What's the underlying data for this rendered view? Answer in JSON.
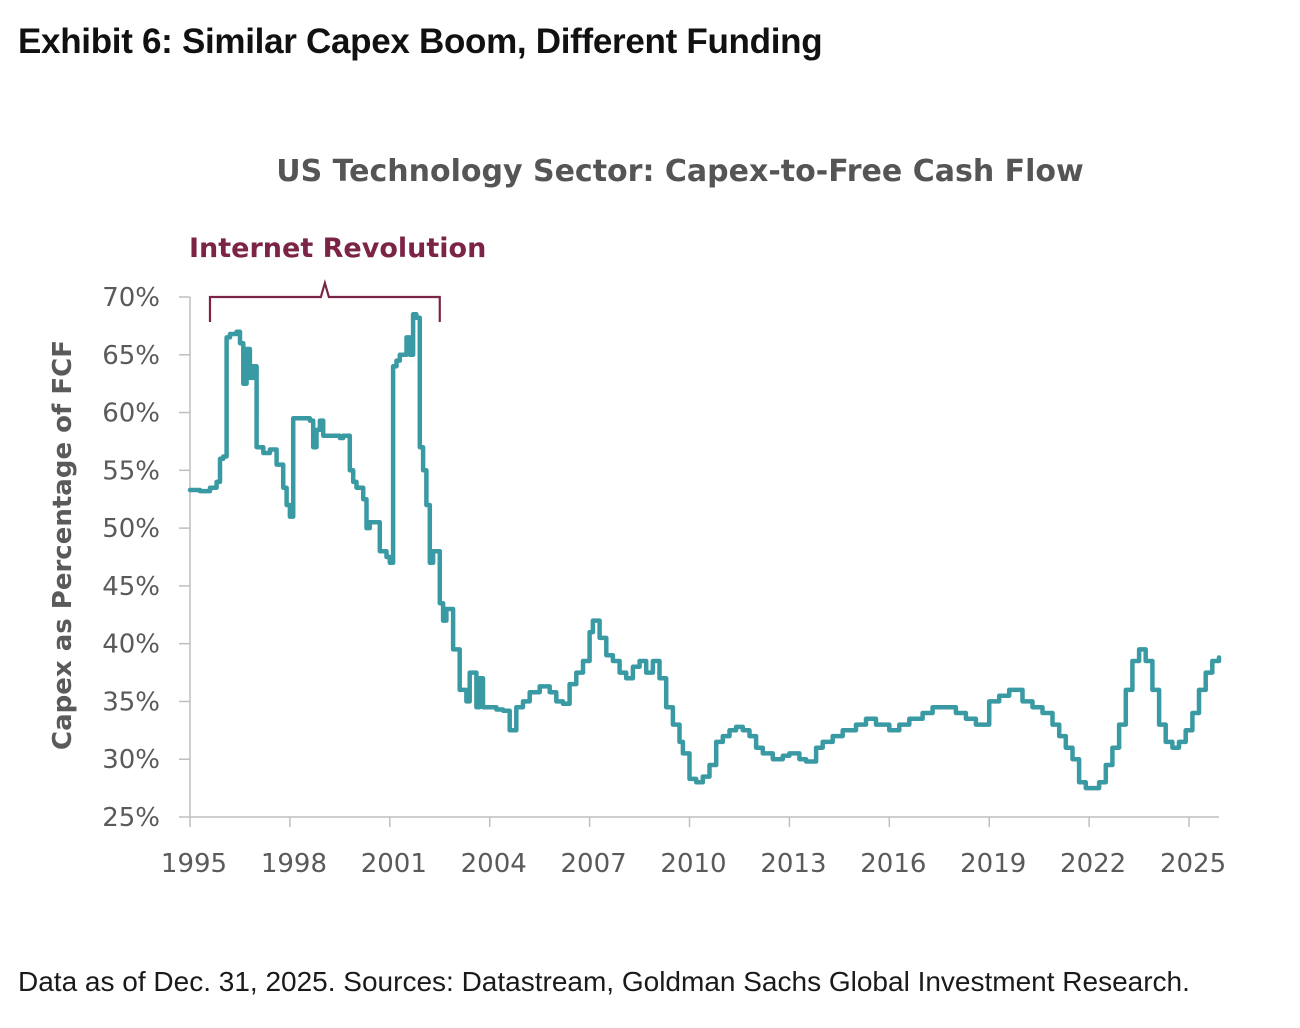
{
  "exhibit": {
    "title": "Exhibit 6: Similar Capex Boom, Different Funding",
    "footnote": "Data as of Dec. 31, 2025. Sources: Datastream, Goldman Sachs Global Investment Research."
  },
  "colors": {
    "line": "#3a9aa3",
    "annotation": "#7b2447",
    "axis": "#bfbfbf"
  },
  "chart_data": {
    "type": "line",
    "title": "US Technology Sector: Capex-to-Free Cash Flow",
    "xlabel": "",
    "ylabel": "Capex as Percentage of FCF",
    "xlim": [
      1995,
      2025.9
    ],
    "ylim": [
      25,
      70
    ],
    "x_ticks": [
      1995,
      1998,
      2001,
      2004,
      2007,
      2010,
      2013,
      2016,
      2019,
      2022,
      2025
    ],
    "x_tick_labels": [
      "1995",
      "1998",
      "2001",
      "2004",
      "2007",
      "2010",
      "2013",
      "2016",
      "2019",
      "2022",
      "2025"
    ],
    "y_ticks": [
      25,
      30,
      35,
      40,
      45,
      50,
      55,
      60,
      65,
      70
    ],
    "y_tick_labels": [
      "25%",
      "30%",
      "35%",
      "40%",
      "45%",
      "50%",
      "55%",
      "60%",
      "65%",
      "70%"
    ],
    "grid": false,
    "legend": "none",
    "annotations": [
      {
        "label": "Internet Revolution",
        "type": "bracket",
        "x_start": 1995.6,
        "x_end": 2002.5
      }
    ],
    "series": [
      {
        "x": [
          1995.0,
          1995.3,
          1995.6,
          1995.8,
          1995.9,
          1996.0,
          1996.1,
          1996.2,
          1996.4,
          1996.5,
          1996.6,
          1996.7,
          1996.8,
          1996.9,
          1997.0,
          1997.2,
          1997.4,
          1997.6,
          1997.8,
          1997.9,
          1998.0,
          1998.1,
          1998.2,
          1998.4,
          1998.6,
          1998.7,
          1998.8,
          1998.9,
          1999.0,
          1999.3,
          1999.5,
          1999.6,
          1999.8,
          1999.9,
          2000.0,
          2000.2,
          2000.3,
          2000.4,
          2000.5,
          2000.7,
          2000.9,
          2001.0,
          2001.1,
          2001.2,
          2001.3,
          2001.5,
          2001.6,
          2001.7,
          2001.8,
          2001.9,
          2002.0,
          2002.1,
          2002.2,
          2002.3,
          2002.5,
          2002.6,
          2002.7,
          2002.9,
          2003.0,
          2003.1,
          2003.3,
          2003.4,
          2003.6,
          2003.7,
          2003.8,
          2004.0,
          2004.2,
          2004.4,
          2004.6,
          2004.8,
          2005.0,
          2005.2,
          2005.5,
          2005.8,
          2006.0,
          2006.2,
          2006.4,
          2006.6,
          2006.8,
          2007.0,
          2007.1,
          2007.3,
          2007.5,
          2007.7,
          2007.9,
          2008.1,
          2008.3,
          2008.5,
          2008.7,
          2008.9,
          2009.1,
          2009.3,
          2009.5,
          2009.7,
          2009.8,
          2010.0,
          2010.2,
          2010.4,
          2010.6,
          2010.8,
          2011.0,
          2011.2,
          2011.4,
          2011.6,
          2011.8,
          2012.0,
          2012.2,
          2012.5,
          2012.8,
          2013.0,
          2013.3,
          2013.5,
          2013.8,
          2014.0,
          2014.3,
          2014.6,
          2015.0,
          2015.3,
          2015.6,
          2016.0,
          2016.3,
          2016.6,
          2017.0,
          2017.3,
          2017.6,
          2018.0,
          2018.3,
          2018.6,
          2019.0,
          2019.3,
          2019.6,
          2020.0,
          2020.3,
          2020.6,
          2020.9,
          2021.1,
          2021.3,
          2021.5,
          2021.7,
          2021.9,
          2022.1,
          2022.3,
          2022.5,
          2022.7,
          2022.9,
          2023.1,
          2023.3,
          2023.5,
          2023.7,
          2023.9,
          2024.1,
          2024.3,
          2024.5,
          2024.7,
          2024.9,
          2025.1,
          2025.3,
          2025.5,
          2025.7,
          2025.9
        ],
        "values": [
          53.3,
          53.2,
          53.5,
          54.0,
          56.0,
          56.2,
          66.5,
          66.8,
          67.0,
          66.0,
          62.5,
          65.5,
          63.0,
          64.0,
          57.0,
          56.5,
          56.8,
          55.5,
          53.5,
          52.0,
          51.0,
          59.5,
          59.5,
          59.5,
          59.3,
          57.0,
          58.5,
          59.3,
          58.0,
          58.0,
          57.8,
          58.0,
          55.0,
          54.0,
          53.5,
          52.5,
          50.0,
          50.5,
          50.5,
          48.0,
          47.5,
          47.0,
          64.0,
          64.5,
          65.0,
          66.5,
          65.0,
          68.5,
          68.2,
          57.0,
          55.0,
          52.0,
          47.0,
          48.0,
          43.5,
          42.0,
          43.0,
          39.5,
          39.5,
          36.0,
          35.0,
          37.5,
          34.5,
          37.0,
          34.5,
          34.5,
          34.3,
          34.2,
          32.5,
          34.5,
          35.0,
          35.8,
          36.3,
          35.8,
          35.0,
          34.8,
          36.5,
          37.5,
          38.5,
          41.0,
          42.0,
          40.5,
          39.0,
          38.5,
          37.5,
          37.0,
          38.0,
          38.5,
          37.5,
          38.5,
          37.0,
          34.5,
          33.0,
          31.5,
          30.5,
          28.3,
          28.0,
          28.5,
          29.5,
          31.5,
          32.0,
          32.5,
          32.8,
          32.5,
          32.0,
          31.0,
          30.5,
          30.0,
          30.3,
          30.5,
          30.0,
          29.8,
          31.0,
          31.5,
          32.0,
          32.5,
          33.0,
          33.5,
          33.0,
          32.5,
          33.0,
          33.5,
          34.0,
          34.5,
          34.5,
          34.0,
          33.5,
          33.0,
          35.0,
          35.5,
          36.0,
          35.0,
          34.5,
          34.0,
          33.0,
          32.0,
          31.0,
          30.0,
          28.0,
          27.5,
          27.5,
          28.0,
          29.5,
          31.0,
          33.0,
          36.0,
          38.5,
          39.5,
          38.5,
          36.0,
          33.0,
          31.5,
          31.0,
          31.5,
          32.5,
          34.0,
          36.0,
          37.5,
          38.5,
          38.8
        ]
      }
    ]
  }
}
